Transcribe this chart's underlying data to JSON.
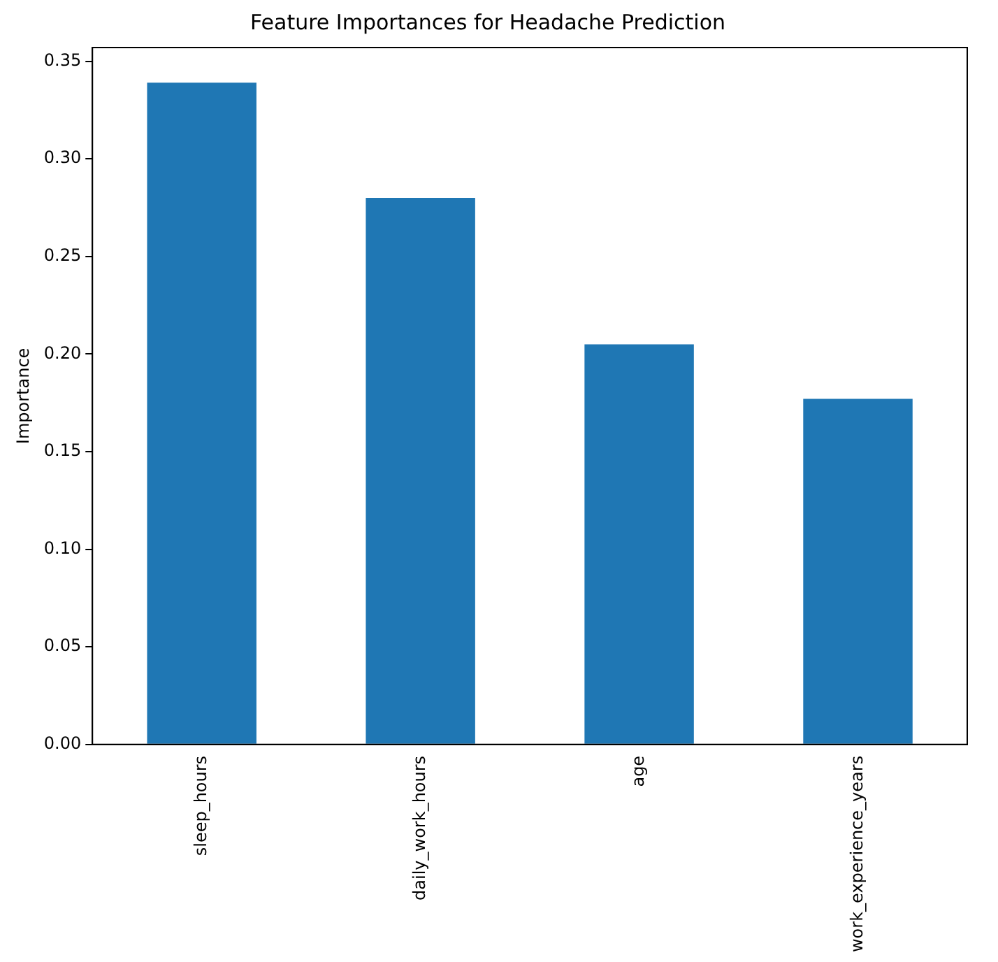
{
  "chart_data": {
    "type": "bar",
    "title": "Feature Importances for Headache Prediction",
    "ylabel": "Importance",
    "categories": [
      "sleep_hours",
      "daily_work_hours",
      "age",
      "work_experience_years"
    ],
    "values": [
      0.339,
      0.28,
      0.205,
      0.177
    ],
    "color": "#1f77b4",
    "ylim": [
      0,
      0.357
    ],
    "yticks": [
      {
        "value": 0,
        "label": "0.00"
      },
      {
        "value": 0.05,
        "label": "0.05"
      },
      {
        "value": 0.1,
        "label": "0.10"
      },
      {
        "value": 0.15,
        "label": "0.15"
      },
      {
        "value": 0.2,
        "label": "0.20"
      },
      {
        "value": 0.25,
        "label": "0.25"
      },
      {
        "value": 0.3,
        "label": "0.30"
      },
      {
        "value": 0.35,
        "label": "0.35"
      }
    ],
    "grid": false,
    "legend": false
  }
}
